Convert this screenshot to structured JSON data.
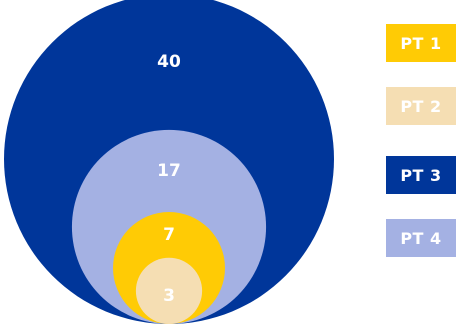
{
  "chart_data": {
    "type": "nested-circles",
    "title": "",
    "series": [
      {
        "name": "PT 1",
        "value": 7,
        "color": "#FFCB05"
      },
      {
        "name": "PT 2",
        "value": 3,
        "color": "#F5DEB3"
      },
      {
        "name": "PT 3",
        "value": 40,
        "color": "#00369A"
      },
      {
        "name": "PT 4",
        "value": 17,
        "color": "#A4B1E3"
      }
    ],
    "legend": {
      "placement": "right",
      "entries": [
        "PT 1",
        "PT 2",
        "PT 3",
        "PT 4"
      ]
    }
  }
}
